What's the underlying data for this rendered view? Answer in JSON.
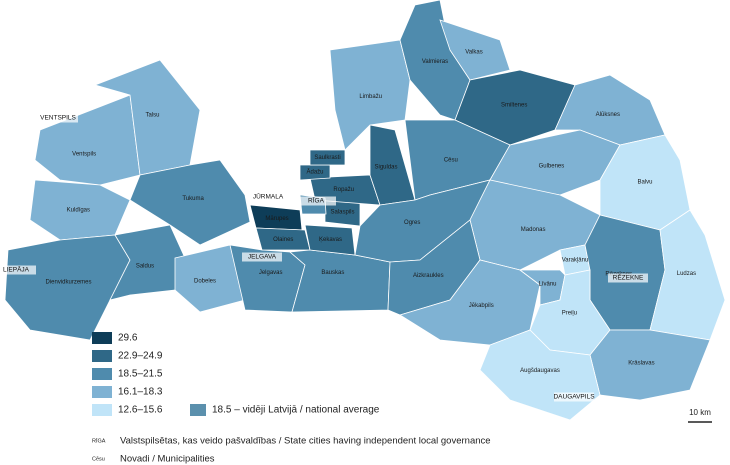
{
  "map": {
    "regions": [
      {
        "label": "Ventspils",
        "color": "#7fb2d3"
      },
      {
        "label": "Talsu",
        "color": "#7fb2d3"
      },
      {
        "label": "Kuldīgas",
        "color": "#7fb2d3"
      },
      {
        "label": "Dienvidkurzemes",
        "color": "#4f8bad"
      },
      {
        "label": "Saldus",
        "color": "#4f8bad"
      },
      {
        "label": "Tukuma",
        "color": "#4f8bad"
      },
      {
        "label": "Dobeles",
        "color": "#7fb2d3"
      },
      {
        "label": "Jelgavas",
        "color": "#4f8bad"
      },
      {
        "label": "Bauskas",
        "color": "#4f8bad"
      },
      {
        "label": "Mārupes",
        "color": "#0e3d58"
      },
      {
        "label": "Olaines",
        "color": "#2f6887"
      },
      {
        "label": "Ķekavas",
        "color": "#2f6887"
      },
      {
        "label": "Salaspils",
        "color": "#2f6887"
      },
      {
        "label": "Ropažu",
        "color": "#2f6887"
      },
      {
        "label": "Ādažu",
        "color": "#2f6887"
      },
      {
        "label": "Saulkrasti",
        "color": "#2f6887"
      },
      {
        "label": "Siguldas",
        "color": "#2f6887"
      },
      {
        "label": "Limbažu",
        "color": "#7fb2d3"
      },
      {
        "label": "Valmieras",
        "color": "#4f8bad"
      },
      {
        "label": "Valkas",
        "color": "#7fb2d3"
      },
      {
        "label": "Smiltenes",
        "color": "#2f6887"
      },
      {
        "label": "Alūksnes",
        "color": "#7fb2d3"
      },
      {
        "label": "Cēsu",
        "color": "#4f8bad"
      },
      {
        "label": "Gulbenes",
        "color": "#7fb2d3"
      },
      {
        "label": "Balvu",
        "color": "#c0e4f8"
      },
      {
        "label": "Ogres",
        "color": "#4f8bad"
      },
      {
        "label": "Madonas",
        "color": "#7fb2d3"
      },
      {
        "label": "Aizkraukles",
        "color": "#4f8bad"
      },
      {
        "label": "Jēkabpils",
        "color": "#7fb2d3"
      },
      {
        "label": "Varakļānu",
        "color": "#c0e4f8"
      },
      {
        "label": "Rēzeknes",
        "color": "#4f8bad"
      },
      {
        "label": "Ludzas",
        "color": "#c0e4f8"
      },
      {
        "label": "Līvānu",
        "color": "#7fb2d3"
      },
      {
        "label": "Preiļu",
        "color": "#c0e4f8"
      },
      {
        "label": "Krāslavas",
        "color": "#7fb2d3"
      },
      {
        "label": "Augšdaugavas",
        "color": "#c0e4f8"
      }
    ],
    "cities": [
      {
        "label": "VENTSPILS"
      },
      {
        "label": "LIEPĀJA"
      },
      {
        "label": "JŪRMALA"
      },
      {
        "label": "RĪGA"
      },
      {
        "label": "JELGAVA"
      },
      {
        "label": "RĒZEKNE"
      },
      {
        "label": "DAUGAVPILS"
      }
    ],
    "legend": {
      "items": [
        {
          "label": "29.6",
          "color": "#0e3d58"
        },
        {
          "label": "22.9–24.9",
          "color": "#2f6887"
        },
        {
          "label": "18.5–21.5",
          "color": "#4f8bad"
        },
        {
          "label": "16.1–18.3",
          "color": "#7fb2d3"
        },
        {
          "label": "12.6–15.6",
          "color": "#c0e4f8"
        }
      ],
      "average": {
        "label": "18.5 – vidēji Latvijā / national average",
        "color": "#5b90ad"
      }
    },
    "notes": [
      {
        "key": "RĪGA",
        "text": "Valstspilsētas, kas veido pašvaldības / State cities having independent local governance"
      },
      {
        "key": "Cēsu",
        "text": "Novadi / Municipalities"
      }
    ],
    "scale": "10 km"
  }
}
